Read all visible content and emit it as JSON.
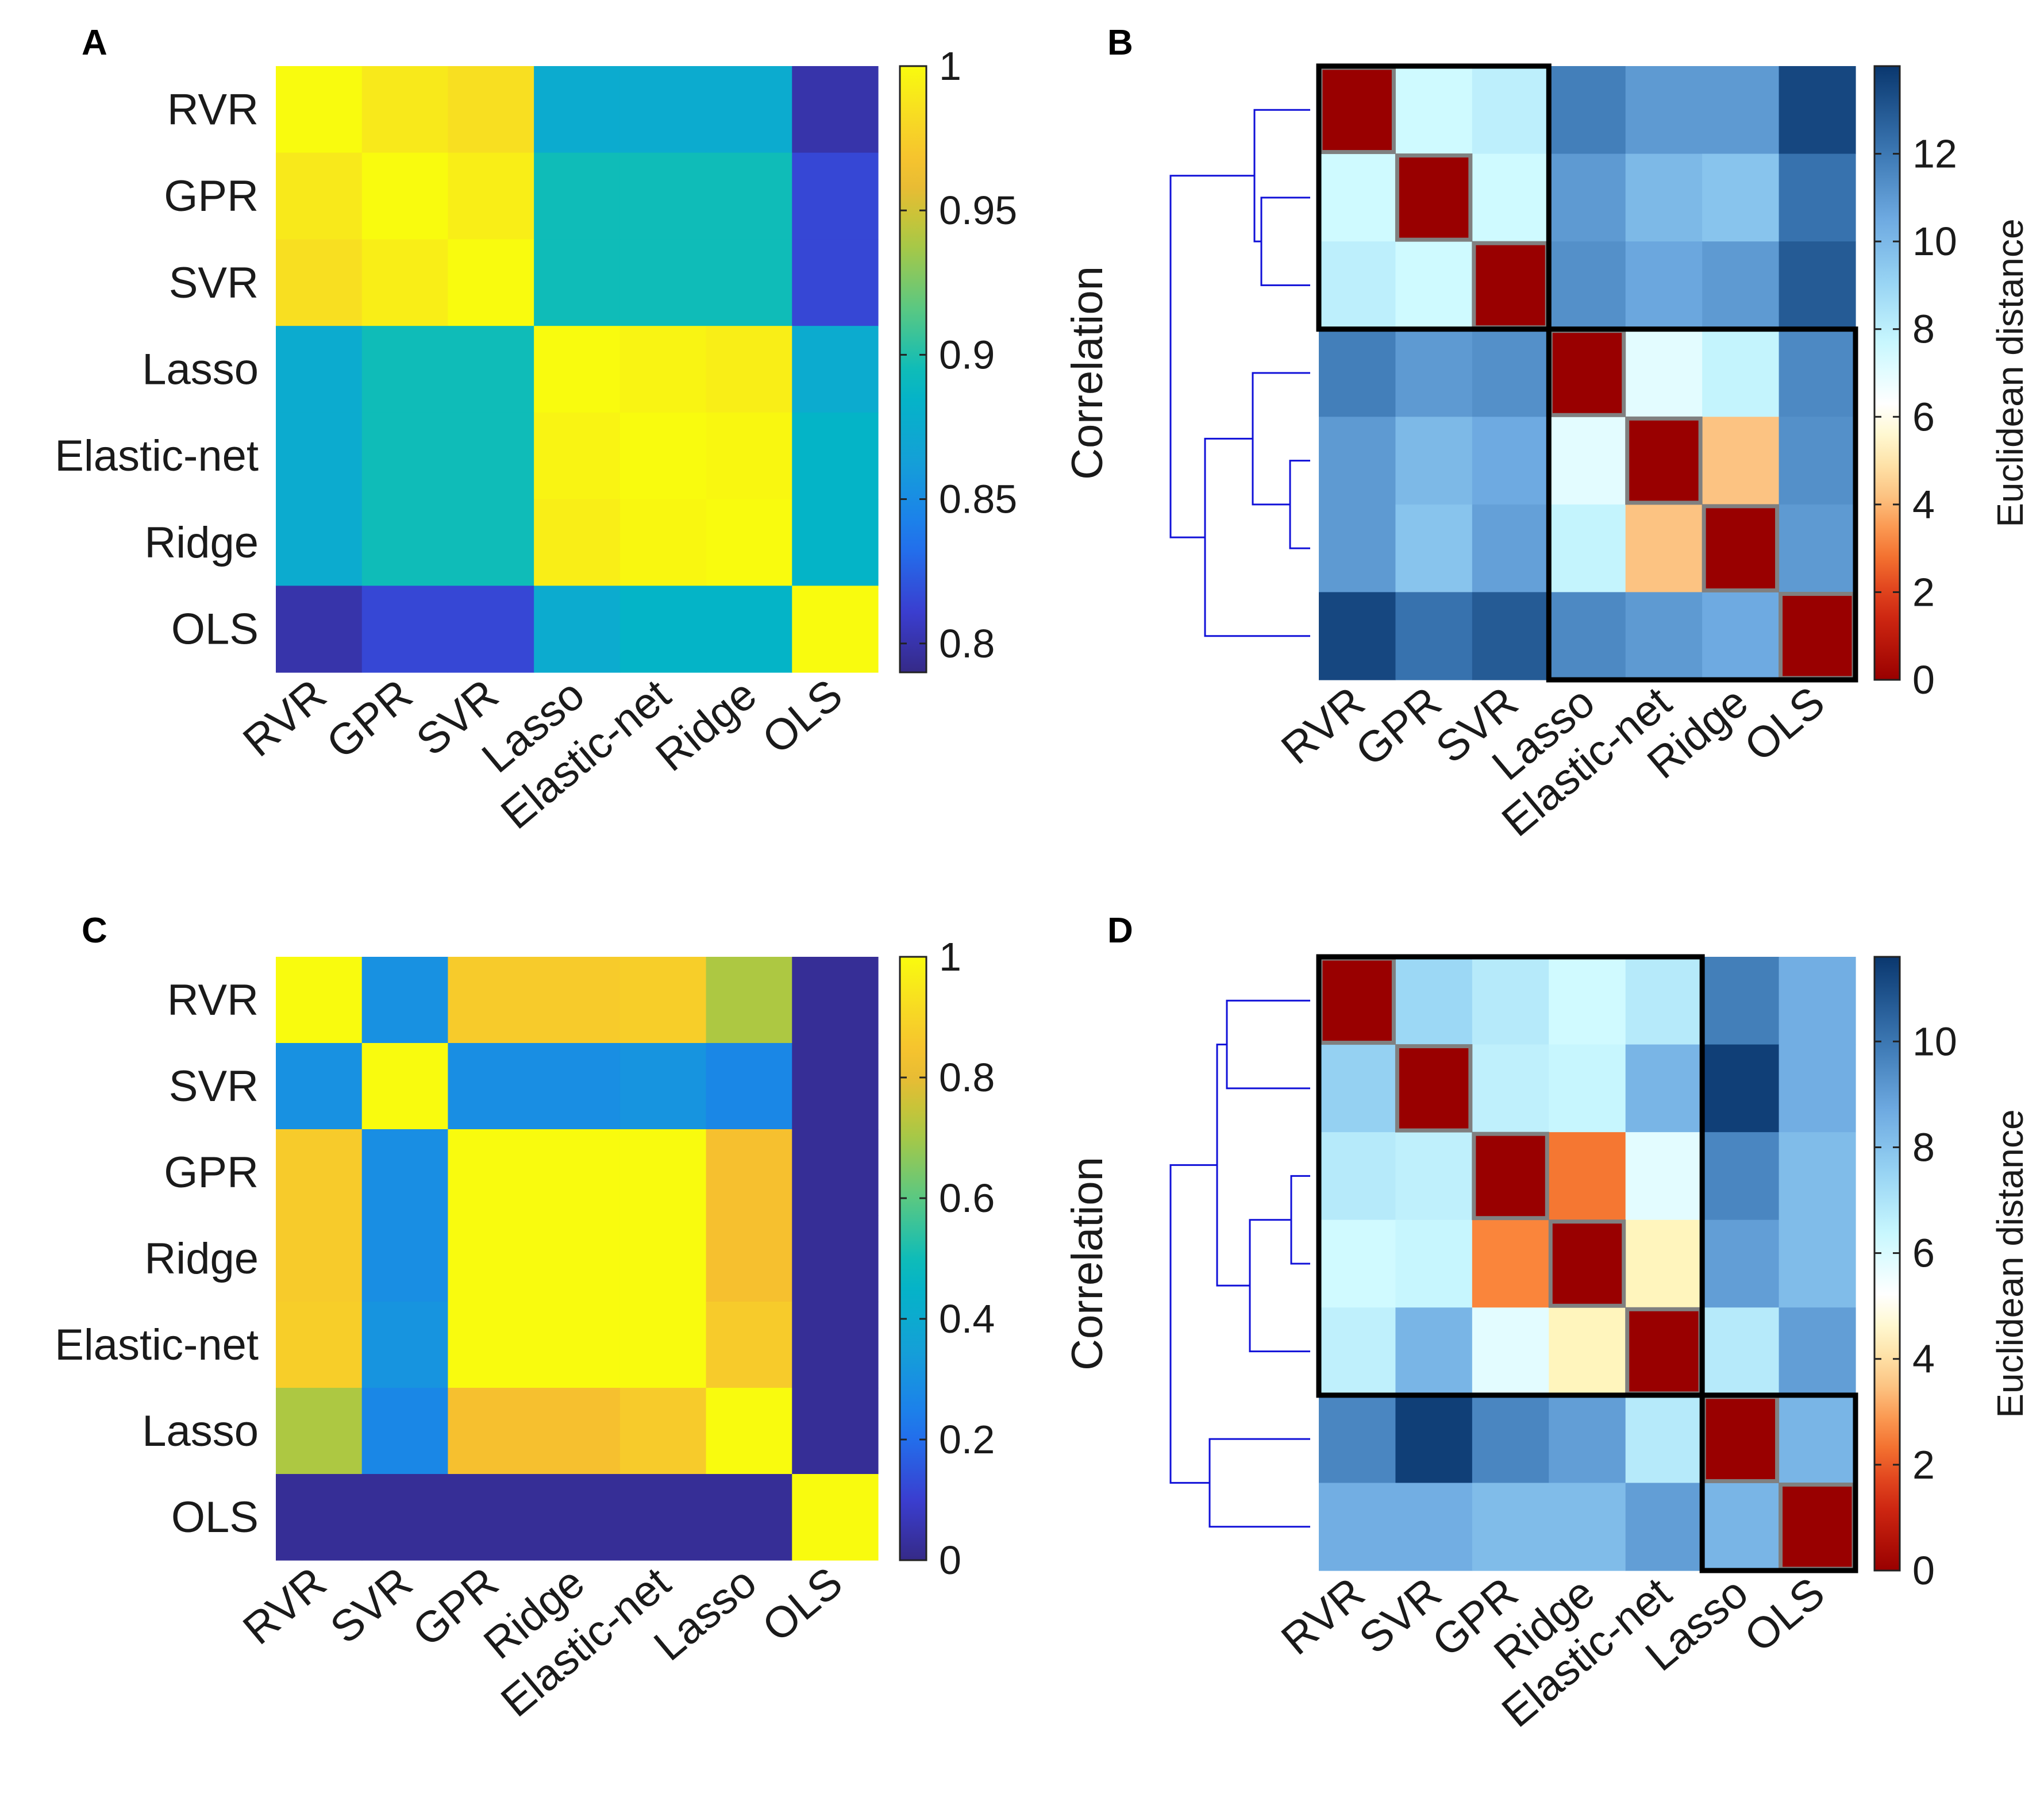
{
  "colors": {
    "dendrogram": "#1010d8",
    "cluster_box": "#000000",
    "diagonal_outline": "#808080"
  },
  "chart_data": [
    {
      "panel": "A",
      "type": "heatmap",
      "colormap": "parula",
      "labels": [
        "RVR",
        "GPR",
        "SVR",
        "Lasso",
        "Elastic-net",
        "Ridge",
        "OLS"
      ],
      "matrix": [
        [
          1.0,
          0.99,
          0.985,
          0.875,
          0.875,
          0.875,
          0.8
        ],
        [
          0.99,
          1.0,
          0.993,
          0.895,
          0.895,
          0.895,
          0.815
        ],
        [
          0.985,
          0.993,
          1.0,
          0.895,
          0.895,
          0.895,
          0.815
        ],
        [
          0.875,
          0.895,
          0.895,
          1.0,
          0.996,
          0.993,
          0.875
        ],
        [
          0.875,
          0.895,
          0.895,
          0.996,
          1.0,
          0.998,
          0.885
        ],
        [
          0.875,
          0.895,
          0.895,
          0.993,
          0.998,
          1.0,
          0.885
        ],
        [
          0.8,
          0.815,
          0.815,
          0.875,
          0.885,
          0.885,
          1.0
        ]
      ],
      "colorbar": {
        "range": [
          0.79,
          1.0
        ],
        "ticks": [
          "1",
          "0.95",
          "0.9",
          "0.85",
          "0.8"
        ]
      }
    },
    {
      "panel": "B",
      "type": "heatmap",
      "colormap": "red-white-blue",
      "labels": [
        "RVR",
        "GPR",
        "SVR",
        "Lasso",
        "Elastic-net",
        "Ridge",
        "OLS"
      ],
      "ylabel": "Correlation",
      "colorbar_label": "Euclidean distance",
      "matrix": [
        [
          0,
          7.5,
          8.0,
          11.8,
          11.0,
          11.0,
          13.5
        ],
        [
          7.5,
          0,
          7.5,
          11.0,
          10.0,
          9.6,
          12.2
        ],
        [
          8.0,
          7.5,
          0,
          11.3,
          10.6,
          11.0,
          12.9
        ],
        [
          11.8,
          11.0,
          11.3,
          0,
          7.0,
          7.8,
          11.5
        ],
        [
          11.0,
          10.0,
          10.5,
          7.0,
          0,
          4.2,
          11.3
        ],
        [
          11.0,
          9.6,
          10.8,
          7.8,
          4.2,
          0,
          11.0
        ],
        [
          13.5,
          12.2,
          12.9,
          11.5,
          11.0,
          10.5,
          0
        ]
      ],
      "colorbar": {
        "range": [
          0,
          14
        ],
        "ticks": [
          "12",
          "10",
          "8",
          "6",
          "4",
          "2",
          "0"
        ]
      },
      "clusters": [
        [
          0,
          2
        ],
        [
          3,
          6
        ]
      ]
    },
    {
      "panel": "C",
      "type": "heatmap",
      "colormap": "parula",
      "labels": [
        "RVR",
        "SVR",
        "GPR",
        "Ridge",
        "Elastic-net",
        "Lasso",
        "OLS"
      ],
      "matrix": [
        [
          1.0,
          0.3,
          0.87,
          0.87,
          0.88,
          0.71,
          0.02
        ],
        [
          0.3,
          1.0,
          0.29,
          0.29,
          0.31,
          0.27,
          0.02
        ],
        [
          0.87,
          0.29,
          1.0,
          1.0,
          1.0,
          0.84,
          0.02
        ],
        [
          0.87,
          0.29,
          1.0,
          1.0,
          1.0,
          0.84,
          0.02
        ],
        [
          0.88,
          0.31,
          1.0,
          1.0,
          1.0,
          0.87,
          0.02
        ],
        [
          0.71,
          0.27,
          0.84,
          0.84,
          0.87,
          1.0,
          0.02
        ],
        [
          0.02,
          0.02,
          0.02,
          0.02,
          0.02,
          0.02,
          1.0
        ]
      ],
      "colorbar": {
        "range": [
          0,
          1.0
        ],
        "ticks": [
          "1",
          "0.8",
          "0.6",
          "0.4",
          "0.2",
          "0"
        ]
      }
    },
    {
      "panel": "D",
      "type": "heatmap",
      "colormap": "red-white-blue",
      "labels": [
        "RVR",
        "SVR",
        "GPR",
        "Ridge",
        "Elastic-net",
        "Lasso",
        "OLS"
      ],
      "ylabel": "Correlation",
      "colorbar_label": "Euclidean distance",
      "matrix": [
        [
          0,
          7.4,
          6.8,
          6.2,
          6.8,
          9.8,
          8.6
        ],
        [
          7.6,
          0,
          6.6,
          6.4,
          8.4,
          11.4,
          8.6
        ],
        [
          6.8,
          6.6,
          0,
          2.4,
          5.8,
          9.6,
          8.2
        ],
        [
          6.2,
          6.4,
          2.6,
          0,
          4.4,
          9.0,
          8.2
        ],
        [
          6.6,
          8.4,
          5.8,
          4.4,
          0,
          6.8,
          9.0
        ],
        [
          9.6,
          11.4,
          9.6,
          9.0,
          6.8,
          0,
          8.4
        ],
        [
          8.6,
          8.6,
          8.2,
          8.2,
          9.0,
          8.4,
          0
        ]
      ],
      "colorbar": {
        "range": [
          0,
          11.6
        ],
        "ticks": [
          "10",
          "8",
          "6",
          "4",
          "2",
          "0"
        ]
      },
      "clusters": [
        [
          0,
          4
        ],
        [
          5,
          6
        ]
      ]
    }
  ]
}
